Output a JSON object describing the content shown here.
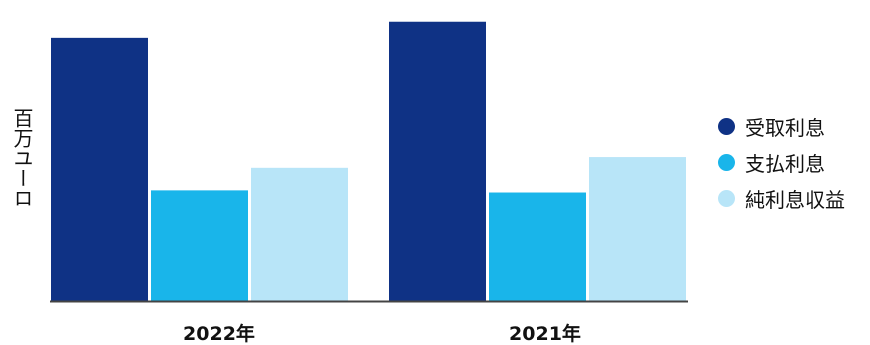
{
  "chart_data": {
    "type": "bar",
    "categories": [
      "2022年",
      "2021年"
    ],
    "series": [
      {
        "name": "受取利息",
        "values": [
          2450,
          2600
        ],
        "color": "#0f3285"
      },
      {
        "name": "支払利息",
        "values": [
          1030,
          1010
        ],
        "color": "#19b5ea"
      },
      {
        "name": "純利息収益",
        "values": [
          1240,
          1340
        ],
        "color": "#b8e5f8"
      }
    ],
    "ylabel": "百万ユーロ",
    "xlabel": "",
    "title": "",
    "ylim": [
      0,
      2700
    ],
    "grid": false,
    "legend_position": "right"
  }
}
